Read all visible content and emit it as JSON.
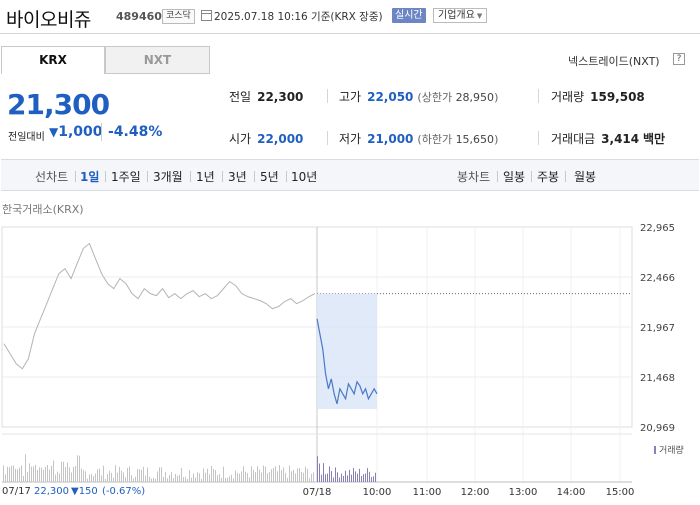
{
  "header": {
    "stock_name": "바이오비쥬",
    "stock_code": "489460",
    "market_badge": "코스닥",
    "timestamp": "2025.07.18 10:16 기준(KRX 장중)",
    "realtime_label": "실시간",
    "company_info_label": "기업개요"
  },
  "tabs": {
    "krx": "KRX",
    "nxt": "NXT",
    "nextrade_label": "넥스트레이드(NXT)",
    "help_label": "?"
  },
  "price": {
    "current": "21,300",
    "change_label": "전일대비",
    "change_amount": "1,000",
    "change_arrow": "▼",
    "change_rate": "-4.48%"
  },
  "stats": {
    "prev_close_label": "전일",
    "prev_close": "22,300",
    "high_label": "고가",
    "high": "22,050",
    "upper_limit_label": "(상한가",
    "upper_limit": "28,950",
    "upper_limit_close": ")",
    "volume_label": "거래량",
    "volume": "159,508",
    "open_label": "시가",
    "open": "22,000",
    "low_label": "저가",
    "low": "21,000",
    "lower_limit_label": "(하한가",
    "lower_limit": "15,650",
    "lower_limit_close": ")",
    "amount_label": "거래대금",
    "amount": "3,414",
    "amount_unit": "백만"
  },
  "period_bar": {
    "line_label": "선차트",
    "line_periods": [
      "1일",
      "1주일",
      "3개월",
      "1년",
      "3년",
      "5년",
      "10년"
    ],
    "active_index": 0,
    "candle_label": "봉차트",
    "candle_periods": [
      "일봉",
      "주봉",
      "월봉"
    ]
  },
  "chart_meta": {
    "exchange_label": "한국거래소(KRX)",
    "volume_legend": "거래량",
    "footer_date": "07/17",
    "footer_close": "22,300",
    "footer_change": "▼150",
    "footer_rate": "(-0.67%)"
  },
  "chart_data": {
    "type": "line",
    "y_ticks": [
      "22,965",
      "22,466",
      "21,967",
      "21,468",
      "20,969"
    ],
    "ylim": [
      20969,
      22965
    ],
    "x_ticks": [
      "07/18",
      "10:00",
      "11:00",
      "12:00",
      "13:00",
      "14:00",
      "15:00"
    ],
    "reference_price": 22300,
    "series": [
      {
        "session": "07/17",
        "color": "#b4b4b4",
        "values": [
          21800,
          21700,
          21600,
          21550,
          21650,
          21900,
          22050,
          22200,
          22350,
          22500,
          22550,
          22450,
          22600,
          22750,
          22800,
          22650,
          22500,
          22400,
          22350,
          22450,
          22400,
          22300,
          22250,
          22350,
          22300,
          22280,
          22350,
          22260,
          22300,
          22250,
          22300,
          22330,
          22270,
          22300,
          22250,
          22280,
          22350,
          22420,
          22380,
          22300,
          22270,
          22250,
          22230,
          22200,
          22150,
          22170,
          22220,
          22250,
          22200,
          22230,
          22270,
          22300
        ]
      },
      {
        "session": "07/18",
        "color": "#4a78c8",
        "values": [
          22050,
          21900,
          21750,
          21500,
          21350,
          21450,
          21300,
          21200,
          21350,
          21300,
          21250,
          21400,
          21350,
          21300,
          21420,
          21380,
          21300,
          21350,
          21250,
          21300,
          21350,
          21300
        ]
      }
    ]
  }
}
